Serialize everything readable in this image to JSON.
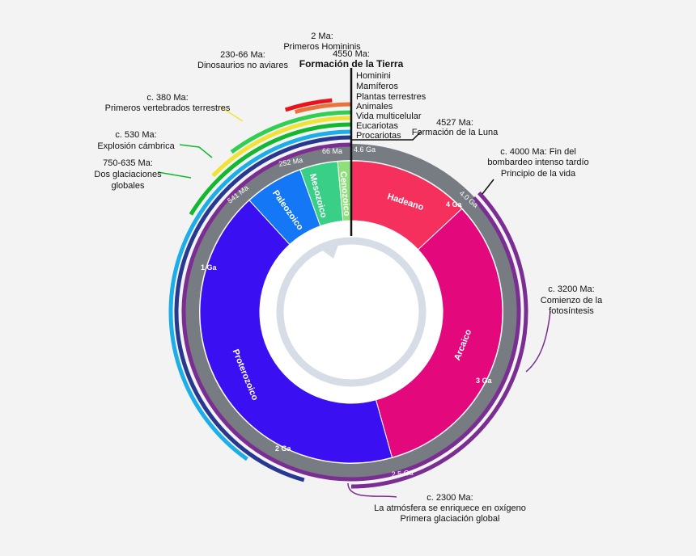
{
  "diagram": {
    "title_line1": "4550 Ma:",
    "title_line2": "Formación de la Tierra",
    "ring_ticks": [
      "4.6 Ga",
      "66 Ma",
      "252 Ma",
      "541 Ma",
      "4.0 Ga",
      "2.5 Ga"
    ],
    "ga_labels": [
      "1 Ga",
      "2 Ga",
      "3 Ga",
      "4 Ga"
    ],
    "eras": [
      {
        "name": "Hadeano",
        "from": 4600,
        "to": 4000,
        "color": "#f5305d"
      },
      {
        "name": "Arcaico",
        "from": 4000,
        "to": 2500,
        "color": "#e4087d"
      },
      {
        "name": "Proterozoico",
        "from": 2500,
        "to": 541,
        "color": "#3a10f2"
      },
      {
        "name": "Paleozoico",
        "from": 541,
        "to": 252,
        "color": "#1477f6"
      },
      {
        "name": "Mesozoico",
        "from": 252,
        "to": 66,
        "color": "#39cf86"
      },
      {
        "name": "Cenozoico",
        "from": 66,
        "to": 0,
        "color": "#8fe07a"
      }
    ],
    "life_list": [
      "Hominini",
      "Mamíferos",
      "Plantas terrestres",
      "Animales",
      "Vida multicelular",
      "Eucariotas",
      "Procariotas"
    ],
    "events": [
      {
        "line1": "2 Ma:",
        "line2": "Primeros Homininis"
      },
      {
        "line1": "230-66 Ma:",
        "line2": "Dinosaurios no aviares"
      },
      {
        "line1": "c. 380 Ma:",
        "line2": "Primeros vertebrados terrestres"
      },
      {
        "line1": "c. 530 Ma:",
        "line2": "Explosión cámbrica"
      },
      {
        "line1": "750-635 Ma:",
        "line2": "Dos glaciaciones",
        "line3": "globales"
      },
      {
        "line1": "4527 Ma:",
        "line2": "Formación de la Luna"
      },
      {
        "line1": "c. 4000 Ma: Fin del",
        "line2": "bombardeo intenso tardío",
        "line3": "Principio de la vida"
      },
      {
        "line1": "c. 3200 Ma:",
        "line2": "Comienzo de la",
        "line3": "fotosíntesis"
      },
      {
        "line1": "c. 2300 Ma:",
        "line2": "La atmósfera se enriquece en oxígeno",
        "line3": "Primera glaciación global"
      }
    ],
    "arcs": [
      {
        "name": "dinosaurs-arc",
        "from": 230,
        "to": 66,
        "color": "#e8141c"
      },
      {
        "name": "mammals-arc",
        "from": 200,
        "to": 0,
        "color": "#e8743b"
      },
      {
        "name": "land-plants-arc",
        "from": 470,
        "to": 0,
        "color": "#2fcf4f"
      },
      {
        "name": "animals-arc",
        "from": 580,
        "to": 0,
        "color": "#f2e236"
      },
      {
        "name": "multicellular-arc",
        "from": 750,
        "to": 0,
        "color": "#13b830"
      },
      {
        "name": "eukaryotes-arc",
        "from": 1850,
        "to": 0,
        "color": "#1caee8"
      },
      {
        "name": "prokaryotes-arc",
        "from": 2100,
        "to": 0,
        "color": "#283891"
      },
      {
        "name": "oxygen-arc",
        "from": 4000,
        "to": 0,
        "color": "#7b2e92"
      }
    ],
    "colors": {
      "ring_gray": "#777b82",
      "background": "#f3f3f3",
      "arrow_ring": "#d7dde6"
    }
  }
}
